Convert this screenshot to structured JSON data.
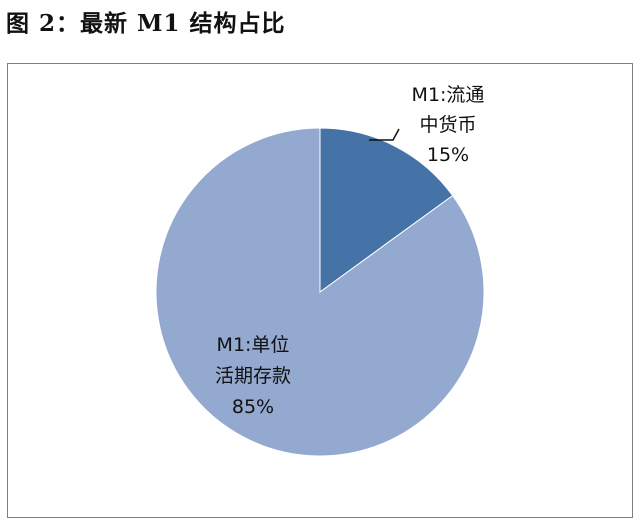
{
  "figure_title": "图 2：最新 M1 结构占比",
  "chart_data": {
    "type": "pie",
    "title": "",
    "slices": [
      {
        "name": "M1:流通中货币",
        "label_lines": [
          "M1:流通",
          "中货币",
          "15%"
        ],
        "value": 15,
        "color": "#4572a7"
      },
      {
        "name": "M1:单位活期存款",
        "label_lines": [
          "M1:单位",
          "活期存款",
          "85%"
        ],
        "value": 85,
        "color": "#93a9cf"
      }
    ],
    "start": "12 o'clock",
    "direction": "clockwise",
    "legend": "none"
  }
}
